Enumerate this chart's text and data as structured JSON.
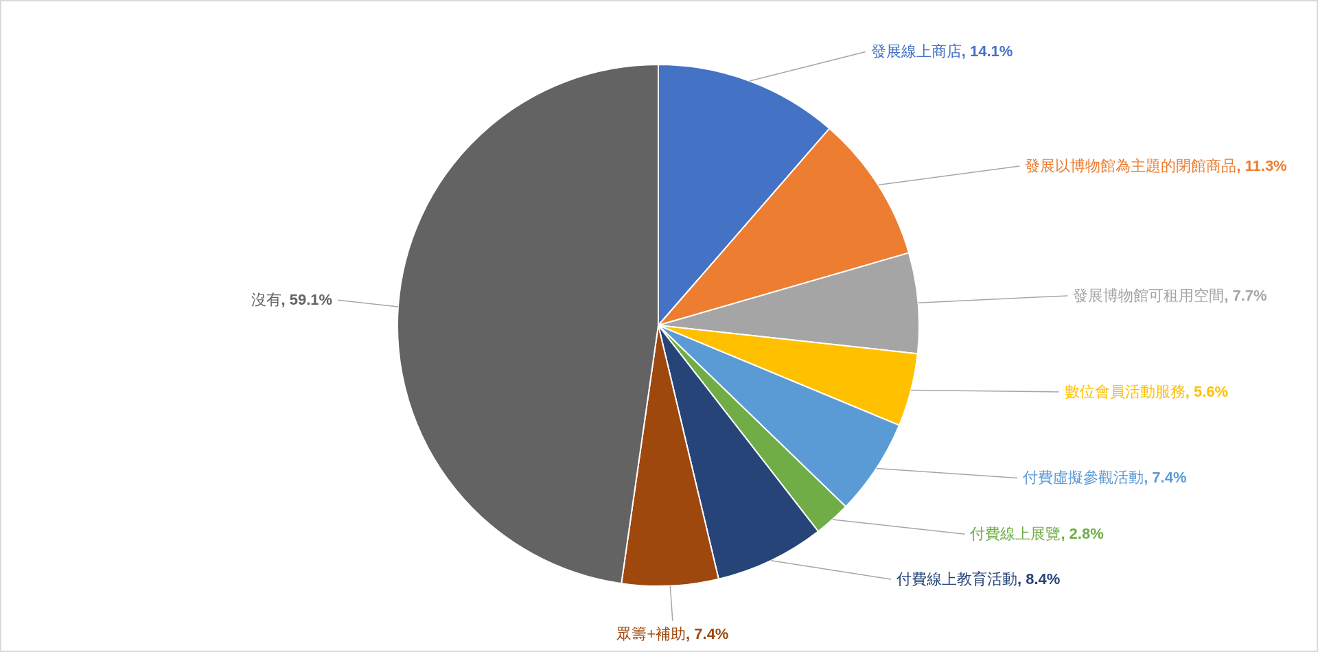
{
  "chart_data": {
    "type": "pie",
    "categories": [
      "發展線上商店",
      "發展以博物館為主題的閉館商品",
      "發展博物館可租用空間",
      "數位會員活動服務",
      "付費虛擬參觀活動",
      "付費線上展覽",
      "付費線上教育活動",
      "眾籌+補助",
      "沒有"
    ],
    "values": [
      14.1,
      11.3,
      7.7,
      5.6,
      7.4,
      2.8,
      8.4,
      7.4,
      59.1
    ],
    "colors": [
      "#4472c4",
      "#ed7d31",
      "#a5a5a5",
      "#ffc000",
      "#5b9bd5",
      "#70ad47",
      "#264478",
      "#9e480e",
      "#636363"
    ],
    "value_labels": [
      ", 14.1%",
      ", 11.3%",
      ", 7.7%",
      ", 5.6%",
      ", 7.4%",
      ", 2.8%",
      ", 8.4%",
      ", 7.4%",
      ", 59.1%"
    ]
  }
}
